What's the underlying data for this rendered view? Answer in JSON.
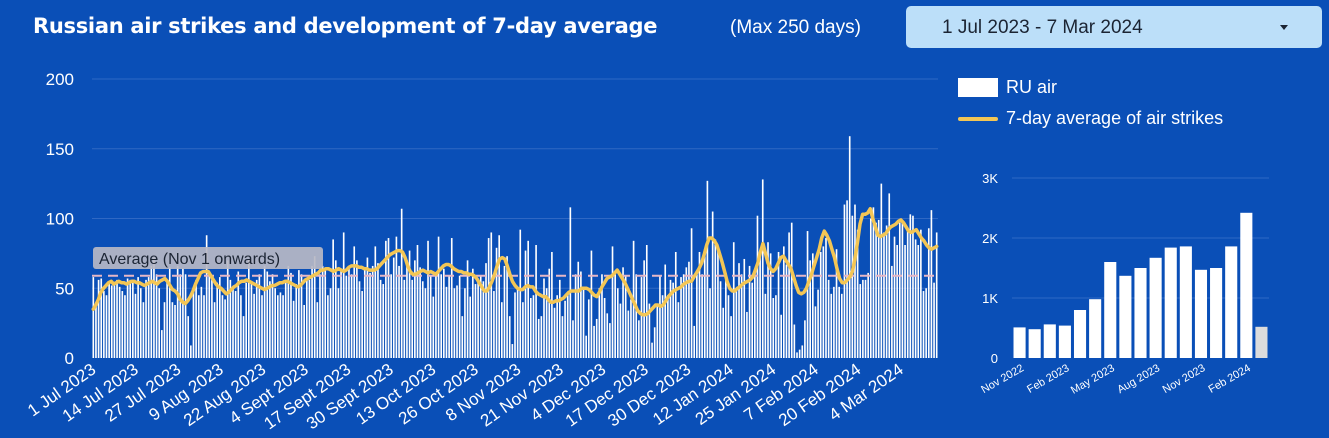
{
  "header": {
    "title": "Russian air strikes and development of 7-day average",
    "max_days": "(Max 250 days)",
    "date_range": "1 Jul 2023 - 7 Mar 2024"
  },
  "legend": {
    "bar_label": "RU air",
    "line_label": "7-day average of air strikes"
  },
  "colors": {
    "background": "#0a4fb7",
    "bars": "#ffffff",
    "average_line": "#f3c655",
    "reference_line": "#e6b7c6",
    "partial_bar": "#dcdcdc"
  },
  "chart_data": [
    {
      "type": "bar",
      "title": "Russian air strikes and development of 7-day average",
      "ylim": [
        0,
        200
      ],
      "yticks": [
        0,
        50,
        100,
        150,
        200
      ],
      "grid": true,
      "legend_position": "top-right",
      "x_tick_labels": [
        "1 Jul 2023",
        "14 Jul 2023",
        "27 Jul 2023",
        "9 Aug 2023",
        "22 Aug 2023",
        "4 Sept 2023",
        "17 Sept 2023",
        "30 Sept 2023",
        "13 Oct 2023",
        "26 Oct 2023",
        "8 Nov 2023",
        "21 Nov 2023",
        "4 Dec 2023",
        "17 Dec 2023",
        "30 Dec 2023",
        "12 Jan 2024",
        "25 Jan 2024",
        "7 Feb 2024",
        "20 Feb 2024",
        "4 Mar 2024"
      ],
      "annotation": "Average (Nov 1 onwards)",
      "reference_line": 59,
      "series": [
        {
          "name": "RU air",
          "type": "bar",
          "values": [
            58,
            40,
            56,
            57,
            48,
            45,
            55,
            52,
            54,
            56,
            51,
            48,
            45,
            57,
            56,
            55,
            46,
            58,
            50,
            40,
            56,
            58,
            66,
            72,
            60,
            50,
            20,
            40,
            55,
            65,
            40,
            38,
            66,
            60,
            64,
            60,
            30,
            9,
            47,
            56,
            45,
            51,
            45,
            88,
            60,
            56,
            40,
            54,
            58,
            45,
            42,
            70,
            56,
            50,
            48,
            62,
            45,
            30,
            54,
            71,
            53,
            46,
            56,
            60,
            45,
            66,
            62,
            55,
            60,
            50,
            45,
            47,
            45,
            55,
            66,
            61,
            41,
            53,
            63,
            60,
            38,
            56,
            56,
            66,
            73,
            40,
            60,
            66,
            63,
            45,
            50,
            85,
            70,
            50,
            62,
            90,
            59,
            64,
            60,
            80,
            70,
            55,
            48,
            65,
            72,
            61,
            66,
            80,
            68,
            56,
            53,
            84,
            86,
            60,
            72,
            87,
            66,
            107,
            56,
            70,
            77,
            56,
            70,
            81,
            65,
            55,
            50,
            84,
            59,
            44,
            61,
            87,
            60,
            64,
            51,
            59,
            86,
            50,
            52,
            59,
            30,
            50,
            70,
            44,
            64,
            53,
            57,
            59,
            55,
            68,
            86,
            90,
            48,
            79,
            88,
            40,
            66,
            73,
            30,
            10,
            47,
            50,
            92,
            40,
            77,
            84,
            43,
            45,
            81,
            28,
            30,
            57,
            50,
            64,
            76,
            36,
            45,
            56,
            30,
            41,
            47,
            108,
            27,
            60,
            69,
            62,
            49,
            16,
            42,
            77,
            23,
            28,
            50,
            60,
            43,
            32,
            25,
            80,
            60,
            50,
            39,
            65,
            59,
            34,
            42,
            84,
            60,
            27,
            58,
            70,
            81,
            39,
            11,
            22,
            37,
            59,
            45,
            67,
            45,
            56,
            54,
            76,
            40,
            58,
            60,
            65,
            69,
            93,
            23,
            60,
            76,
            60,
            78,
            127,
            50,
            105,
            85,
            79,
            55,
            36,
            61,
            45,
            30,
            83,
            48,
            68,
            60,
            71,
            33,
            66,
            54,
            61,
            102,
            73,
            128,
            46,
            83,
            75,
            43,
            45,
            76,
            31,
            80,
            67,
            90,
            97,
            24,
            4,
            6,
            9,
            27,
            91,
            70,
            75,
            37,
            49,
            76,
            80,
            86,
            56,
            46,
            51,
            78,
            51,
            46,
            110,
            113,
            159,
            102,
            110,
            92,
            53,
            56,
            56,
            61,
            100,
            108,
            97,
            99,
            125,
            90,
            95,
            118,
            66,
            87,
            81,
            97,
            98,
            81,
            91,
            103,
            102,
            85,
            81,
            92,
            48,
            50,
            93,
            106,
            54,
            90
          ]
        },
        {
          "name": "7-day average of air strikes",
          "type": "line",
          "values": [
            35,
            38,
            42,
            47,
            50,
            52,
            54,
            55,
            53,
            54,
            55,
            54,
            54,
            53,
            54,
            55,
            55,
            54,
            54,
            53,
            52,
            53,
            54,
            55,
            54,
            53,
            55,
            56,
            57,
            55,
            52,
            49,
            48,
            46,
            42,
            40,
            39,
            41,
            44,
            48,
            53,
            57,
            61,
            62,
            62,
            62,
            59,
            56,
            53,
            51,
            50,
            48,
            46,
            47,
            49,
            51,
            52,
            54,
            55,
            55,
            56,
            55,
            54,
            53,
            52,
            51,
            50,
            49,
            50,
            51,
            52,
            52,
            53,
            54,
            54,
            55,
            55,
            54,
            53,
            52,
            51,
            52,
            54,
            56,
            57,
            58,
            59,
            60,
            61,
            63,
            63,
            64,
            64,
            63,
            62,
            63,
            64,
            63,
            62,
            63,
            65,
            66,
            66,
            66,
            65,
            65,
            64,
            64,
            63,
            63,
            63,
            64,
            66,
            68,
            70,
            72,
            74,
            75,
            76,
            77,
            77,
            76,
            72,
            66,
            62,
            60,
            60,
            61,
            62,
            63,
            62,
            61,
            62,
            61,
            60,
            62,
            64,
            66,
            67,
            67,
            66,
            64,
            63,
            62,
            62,
            61,
            61,
            60,
            60,
            59,
            57,
            54,
            51,
            48,
            48,
            51,
            55,
            60,
            66,
            71,
            72,
            71,
            66,
            60,
            55,
            52,
            50,
            49,
            49,
            51,
            52,
            51,
            51,
            48,
            46,
            45,
            44,
            44,
            42,
            40,
            40,
            41,
            41,
            42,
            43,
            45,
            47,
            48,
            48,
            48,
            48,
            50,
            50,
            50,
            49,
            47,
            45,
            44,
            47,
            51,
            54,
            57,
            58,
            59,
            61,
            63,
            60,
            57,
            54,
            50,
            46,
            42,
            38,
            34,
            32,
            31,
            31,
            32,
            34,
            36,
            38,
            38,
            37,
            38,
            41,
            44,
            46,
            48,
            49,
            50,
            51,
            53,
            54,
            55,
            55,
            58,
            61,
            64,
            68,
            74,
            81,
            86,
            86,
            84,
            81,
            75,
            69,
            62,
            55,
            50,
            48,
            48,
            50,
            51,
            53,
            54,
            55,
            56,
            58,
            63,
            68,
            76,
            82,
            75,
            68,
            64,
            62,
            64,
            68,
            72,
            73,
            70,
            67,
            64,
            58,
            52,
            47,
            46,
            47,
            50,
            55,
            60,
            66,
            72,
            78,
            86,
            91,
            88,
            84,
            78,
            72,
            64,
            57,
            54,
            54,
            56,
            58,
            62,
            71,
            83,
            96,
            103,
            103,
            104,
            107,
            100,
            94,
            88,
            87,
            88,
            89,
            92,
            94,
            95,
            96,
            98,
            99,
            97,
            94,
            91,
            90,
            91,
            92,
            89,
            86,
            84,
            81,
            79,
            78,
            79,
            80
          ]
        }
      ]
    },
    {
      "type": "bar",
      "title": "",
      "ylim": [
        0,
        3000
      ],
      "yticks": [
        0,
        1000,
        2000,
        3000
      ],
      "ytick_labels": [
        "0",
        "1K",
        "2K",
        "3K"
      ],
      "grid": true,
      "categories": [
        "Nov 2022",
        "Dec 2022",
        "Jan 2023",
        "Feb 2023",
        "Mar 2023",
        "Apr 2023",
        "May 2023",
        "Jun 2023",
        "Jul 2023",
        "Aug 2023",
        "Sep 2023",
        "Oct 2023",
        "Nov 2023",
        "Dec 2023",
        "Jan 2024",
        "Feb 2024",
        "Mar 2024"
      ],
      "x_tick_labels": [
        "Nov 2022",
        "Feb 2023",
        "May 2023",
        "Aug 2023",
        "Nov 2023",
        "Feb 2024"
      ],
      "values": [
        510,
        480,
        560,
        540,
        800,
        980,
        1600,
        1370,
        1500,
        1670,
        1840,
        1860,
        1470,
        1500,
        1860,
        2420,
        520
      ],
      "partial_last_bar": true
    }
  ]
}
